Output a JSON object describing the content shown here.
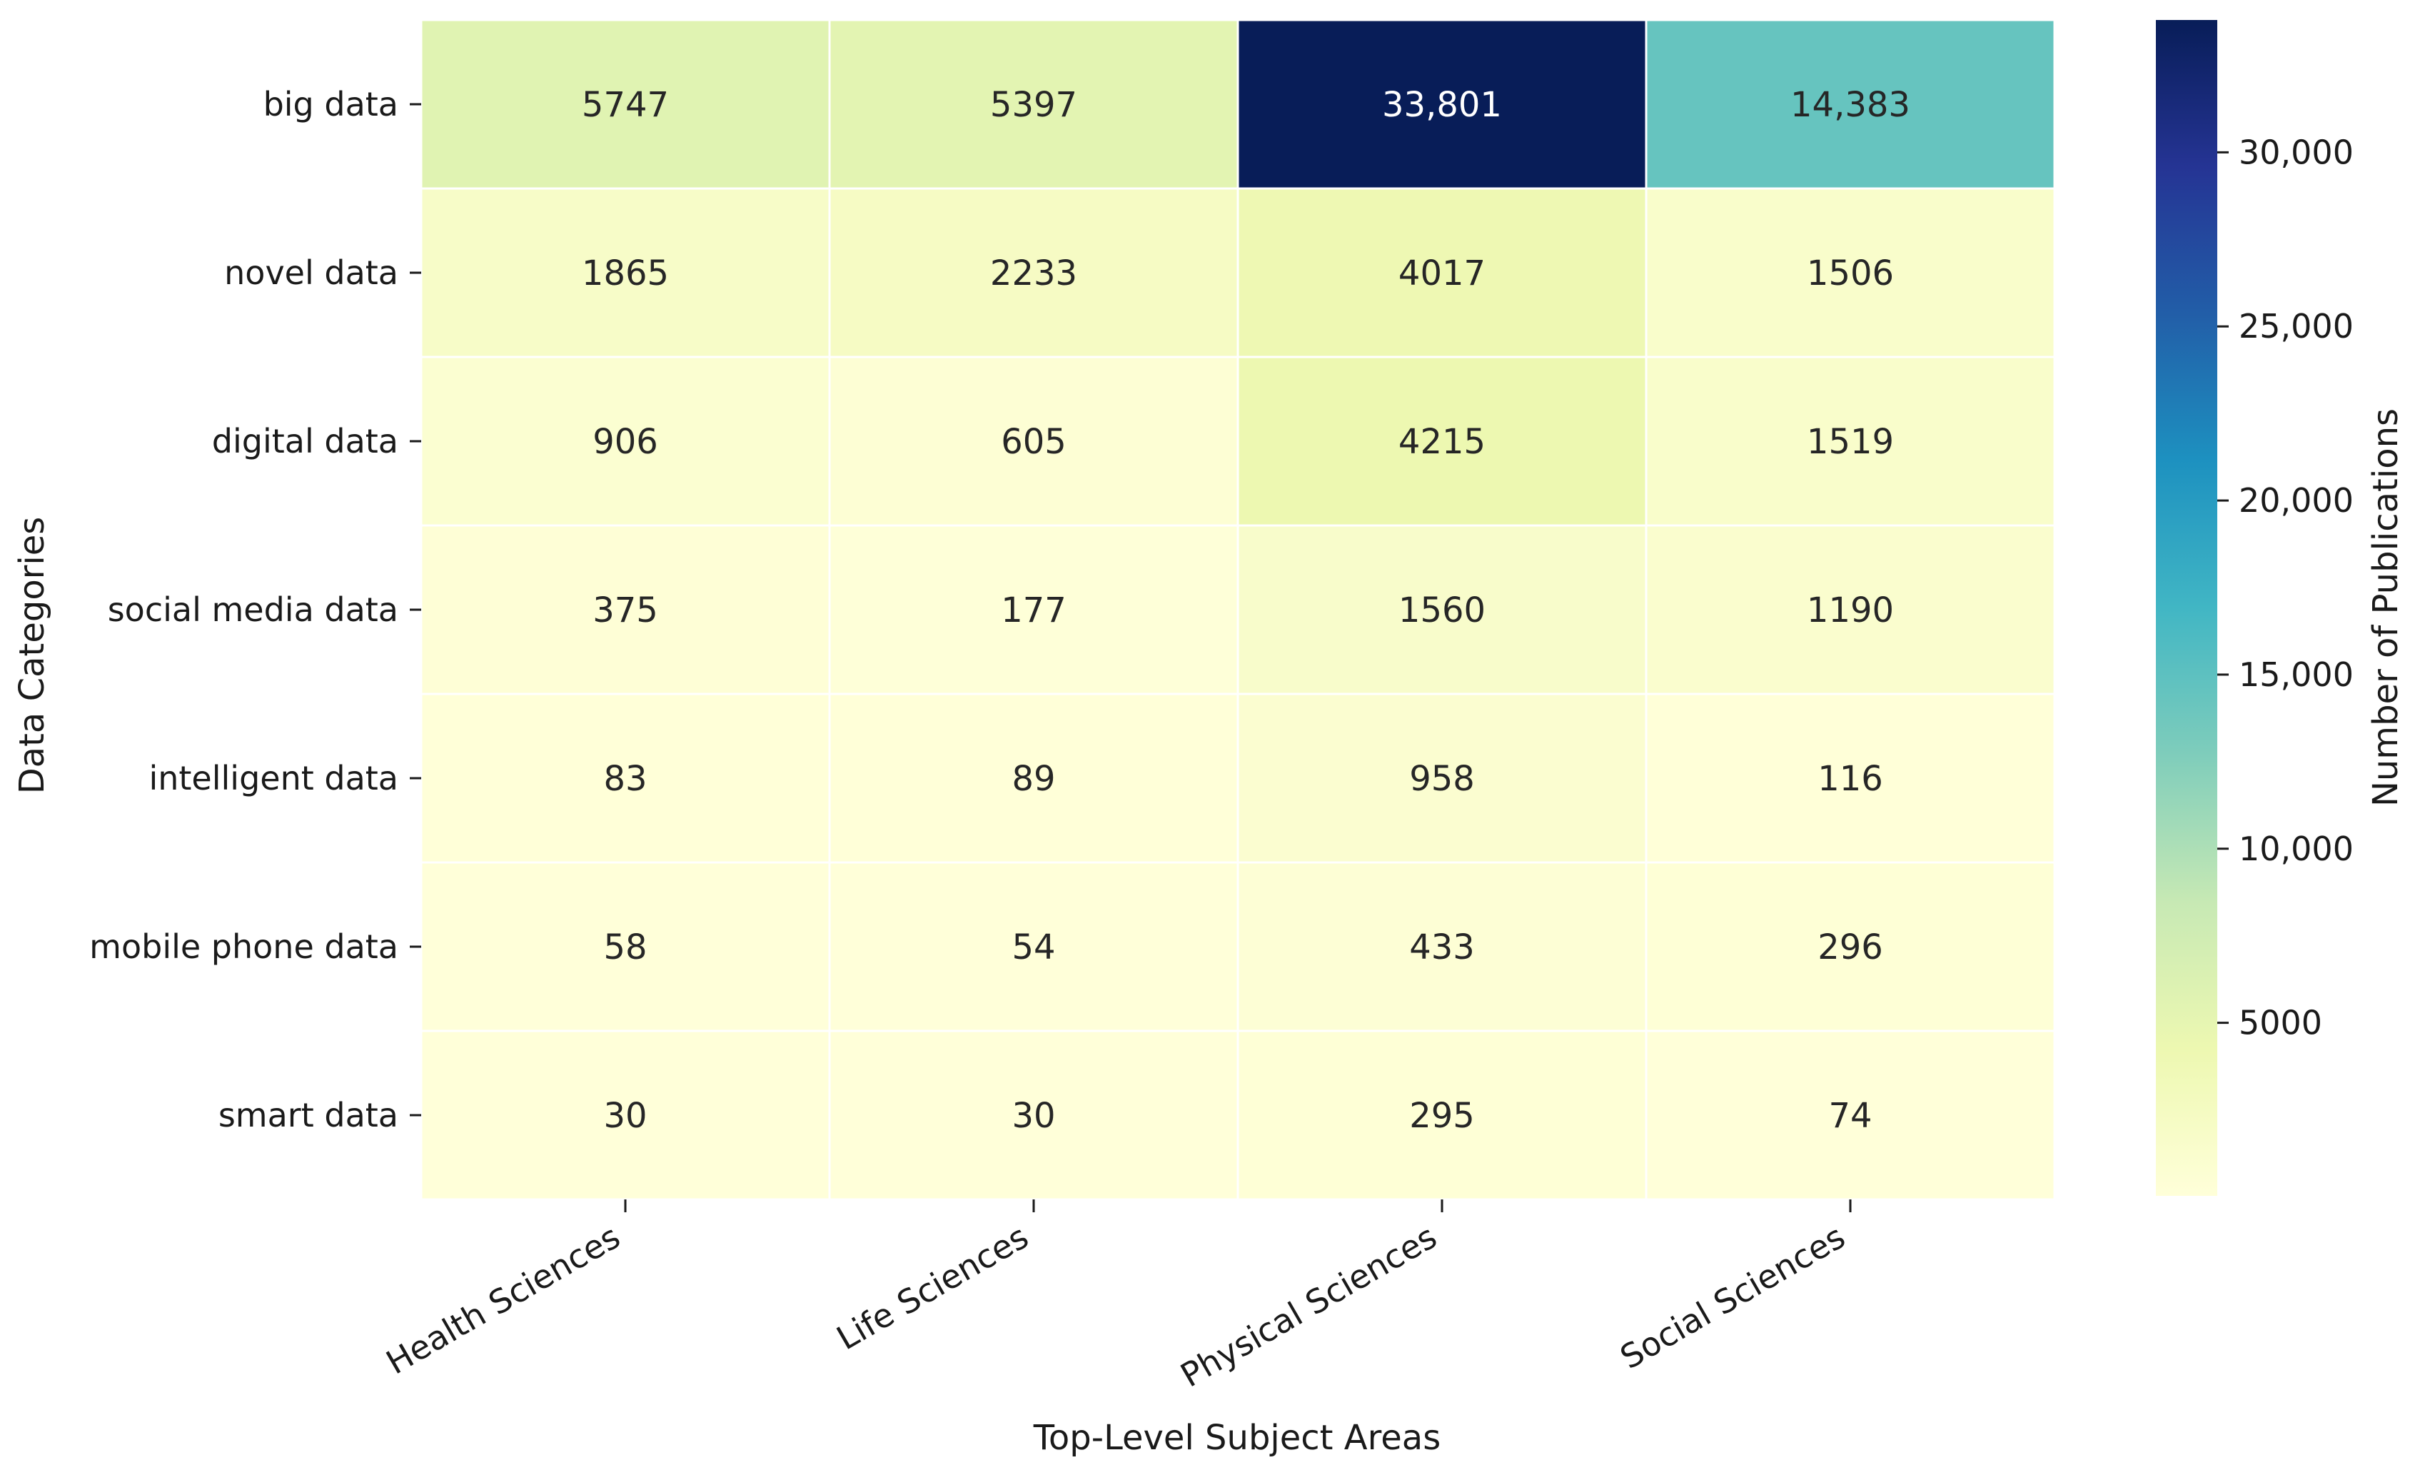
{
  "chart_data": {
    "type": "heatmap",
    "title": "",
    "xlabel": "Top-Level Subject Areas",
    "ylabel": "Data Categories",
    "colorbar_label": "Number of Publications",
    "colormap": "YlGnBu",
    "columns": [
      "Health Sciences",
      "Life Sciences",
      "Physical Sciences",
      "Social Sciences"
    ],
    "rows": [
      "big data",
      "novel data",
      "digital data",
      "social media data",
      "intelligent data",
      "mobile phone data",
      "smart data"
    ],
    "values": [
      [
        5747,
        5397,
        33801,
        14383
      ],
      [
        1865,
        2233,
        4017,
        1506
      ],
      [
        906,
        605,
        4215,
        1519
      ],
      [
        375,
        177,
        1560,
        1190
      ],
      [
        83,
        89,
        958,
        116
      ],
      [
        58,
        54,
        433,
        296
      ],
      [
        30,
        30,
        295,
        74
      ]
    ],
    "cell_labels": [
      [
        "5747",
        "5397",
        "33,801",
        "14,383"
      ],
      [
        "1865",
        "2233",
        "4017",
        "1506"
      ],
      [
        "906",
        "605",
        "4215",
        "1519"
      ],
      [
        "375",
        "177",
        "1560",
        "1190"
      ],
      [
        "83",
        "89",
        "958",
        "116"
      ],
      [
        "58",
        "54",
        "433",
        "296"
      ],
      [
        "30",
        "30",
        "295",
        "74"
      ]
    ],
    "vmin": 30,
    "vmax": 33801,
    "colorbar_ticks": [
      5000,
      10000,
      15000,
      20000,
      25000,
      30000
    ],
    "colorbar_tick_labels": [
      "5000",
      "10,000",
      "15,000",
      "20,000",
      "25,000",
      "30,000"
    ],
    "grid": false
  }
}
